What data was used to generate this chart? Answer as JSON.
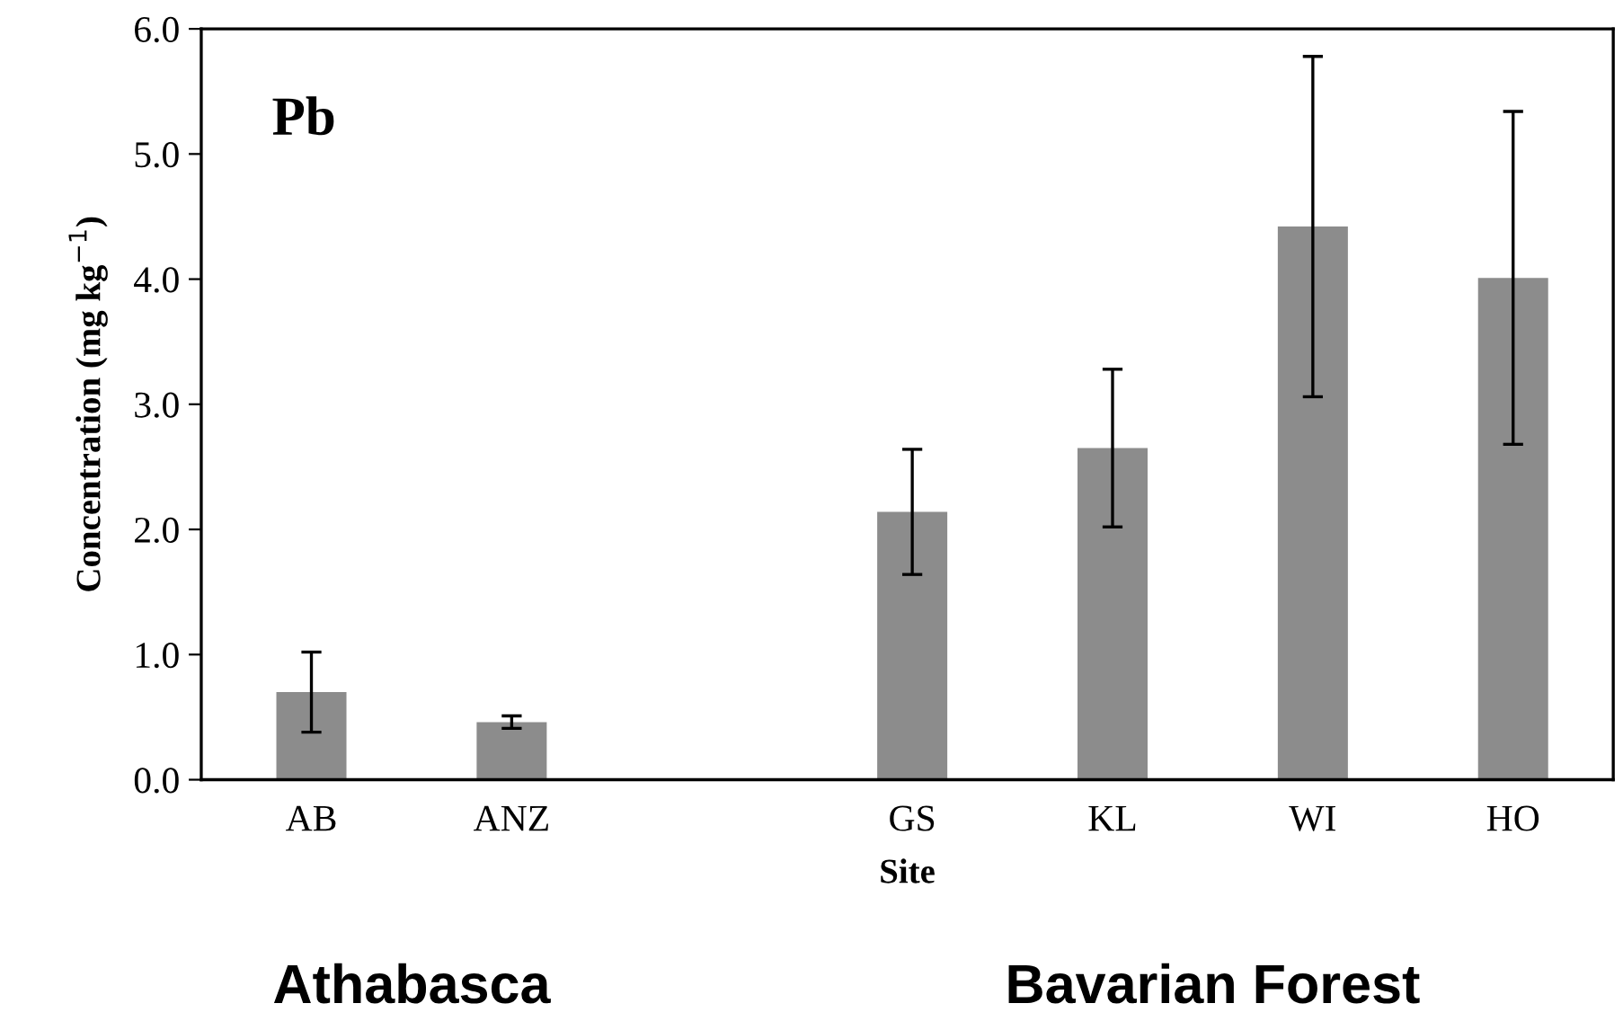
{
  "chart_data": {
    "type": "bar",
    "xlabel": "Site",
    "ylabel": "Concentration (mg kg$^{−1}$)",
    "categories": [
      "AB",
      "ANZ",
      null,
      "GS",
      "KL",
      "WI",
      "HO"
    ],
    "values": [
      0.7,
      0.46,
      null,
      2.14,
      2.65,
      4.42,
      4.01
    ],
    "errors": [
      0.32,
      0.05,
      null,
      0.5,
      0.63,
      1.36,
      1.33
    ],
    "color": "#8c8c8c",
    "ylim": [
      0,
      6
    ],
    "yticks": [
      {
        "value": 0,
        "label": "0.0"
      },
      {
        "value": 1,
        "label": "1.0"
      },
      {
        "value": 2,
        "label": "2.0"
      },
      {
        "value": 3,
        "label": "3.0"
      },
      {
        "value": 4,
        "label": "4.0"
      },
      {
        "value": 5,
        "label": "5.0"
      },
      {
        "value": 6,
        "label": "6.0"
      }
    ],
    "grid": false,
    "legend": false,
    "annotations": [
      "Pb",
      "Athabasca",
      "Bavarian Forest"
    ]
  }
}
